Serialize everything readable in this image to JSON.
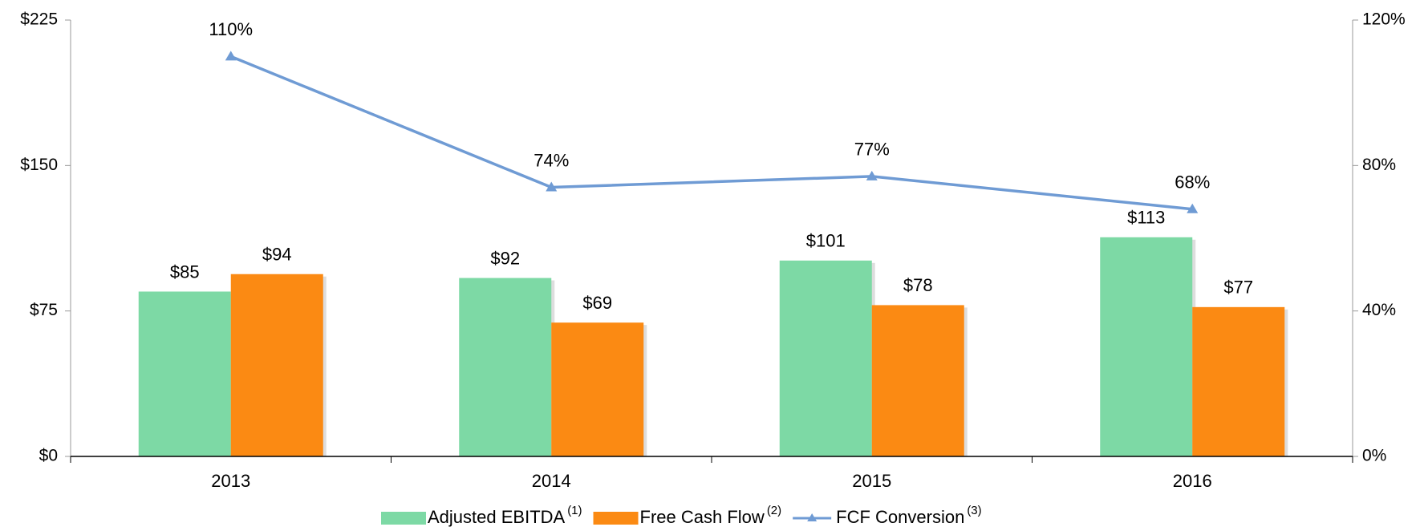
{
  "chart_data": {
    "type": "bar",
    "categories": [
      "2013",
      "2014",
      "2015",
      "2016"
    ],
    "series": [
      {
        "name": "Adjusted EBITDA",
        "footnote": "(1)",
        "type": "bar",
        "color": "#7dd9a5",
        "values": [
          85,
          92,
          101,
          113
        ],
        "value_labels": [
          "$85",
          "$92",
          "$101",
          "$113"
        ]
      },
      {
        "name": "Free Cash Flow",
        "footnote": "(2)",
        "type": "bar",
        "color": "#fb8a13",
        "values": [
          94,
          69,
          78,
          77
        ],
        "value_labels": [
          "$94",
          "$69",
          "$78",
          "$77"
        ]
      },
      {
        "name": "FCF Conversion",
        "footnote": "(3)",
        "type": "line",
        "axis": "y2",
        "color": "#6f9bd4",
        "values": [
          110,
          74,
          77,
          68
        ],
        "value_labels": [
          "110%",
          "74%",
          "77%",
          "68%"
        ]
      }
    ],
    "ylim": [
      0,
      225
    ],
    "yticks": [
      {
        "value": 0,
        "label": "$0"
      },
      {
        "value": 75,
        "label": "$75"
      },
      {
        "value": 150,
        "label": "$150"
      },
      {
        "value": 225,
        "label": "$225"
      }
    ],
    "y2lim": [
      0,
      120
    ],
    "y2ticks": [
      {
        "value": 0,
        "label": "0%"
      },
      {
        "value": 40,
        "label": "40%"
      },
      {
        "value": 80,
        "label": "80%"
      },
      {
        "value": 120,
        "label": "120%"
      }
    ],
    "legend": "bottom"
  }
}
